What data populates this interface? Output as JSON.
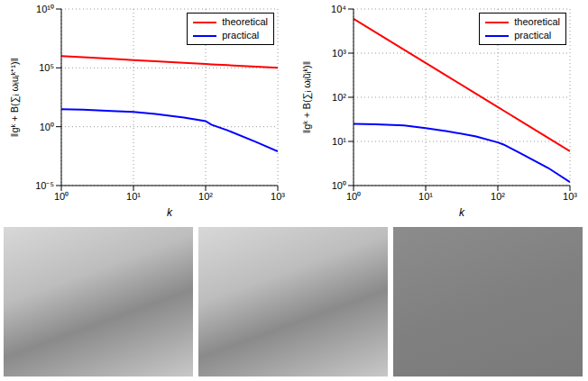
{
  "chart_data": [
    {
      "type": "line",
      "x_label": "k",
      "y_label": "‖gᵏ + B(∑ᵢ ωᵢuᵢᵏ⁺¹)‖",
      "log": true,
      "grid": true,
      "legend": "upper right",
      "xlim": [
        1,
        1000
      ],
      "xticks": [
        {
          "value": 1,
          "label": "10⁰"
        },
        {
          "value": 10,
          "label": "10¹"
        },
        {
          "value": 100,
          "label": "10²"
        },
        {
          "value": 1000,
          "label": "10³"
        }
      ],
      "ylim": [
        1e-05,
        10000000000
      ],
      "yticks": [
        {
          "value": 1e-05,
          "label": "10⁻⁵"
        },
        {
          "value": 1,
          "label": "10⁰"
        },
        {
          "value": 100000,
          "label": "10⁵"
        },
        {
          "value": 10000000000,
          "label": "10¹⁰"
        }
      ],
      "x": [
        1,
        2,
        5,
        10,
        20,
        50,
        100,
        120,
        200,
        500,
        1000
      ],
      "series": [
        {
          "name": "theoretical",
          "color": "#ff0000",
          "values": [
            1000000,
            790000,
            585000,
            460000,
            370000,
            270000,
            215000,
            200000,
            170000,
            126000,
            100000
          ]
        },
        {
          "name": "practical",
          "color": "#0000ff",
          "values": [
            30,
            28,
            22,
            18,
            12,
            6,
            3,
            1.5,
            0.5,
            0.05,
            0.008
          ]
        }
      ]
    },
    {
      "type": "line",
      "x_label": "k",
      "y_label": "‖gᵏ + B(∑ᵢ ωᵢũᵢᵏ)‖",
      "log": true,
      "grid": true,
      "legend": "upper right",
      "xlim": [
        1,
        1000
      ],
      "xticks": [
        {
          "value": 1,
          "label": "10⁰"
        },
        {
          "value": 10,
          "label": "10¹"
        },
        {
          "value": 100,
          "label": "10²"
        },
        {
          "value": 1000,
          "label": "10³"
        }
      ],
      "ylim": [
        1,
        10000
      ],
      "yticks": [
        {
          "value": 1,
          "label": "10⁰"
        },
        {
          "value": 10,
          "label": "10¹"
        },
        {
          "value": 100,
          "label": "10²"
        },
        {
          "value": 1000,
          "label": "10³"
        },
        {
          "value": 10000,
          "label": "10⁴"
        }
      ],
      "x": [
        1,
        2,
        5,
        10,
        20,
        50,
        100,
        120,
        200,
        500,
        1000
      ],
      "series": [
        {
          "name": "theoretical",
          "color": "#ff0000",
          "values": [
            6000,
            3000,
            1200,
            600,
            300,
            120,
            60,
            50,
            30,
            12,
            6
          ]
        },
        {
          "name": "practical",
          "color": "#0000ff",
          "values": [
            25,
            24.5,
            23,
            20,
            17,
            13,
            9.5,
            8.5,
            5.5,
            2.5,
            1.2
          ]
        }
      ]
    }
  ]
}
